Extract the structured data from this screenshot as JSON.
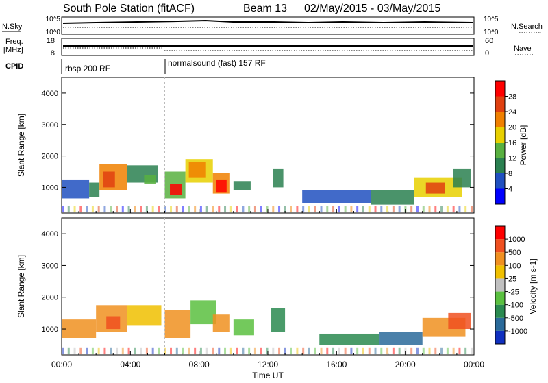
{
  "header": {
    "station": "South Pole Station (fitACF)",
    "beam": "Beam 13",
    "dates": "02/May/2015 - 03/May/2015"
  },
  "top_panels": {
    "nsky_label": "N.Sky",
    "nsky_ticks": [
      "10^5",
      "10^0"
    ],
    "nsearch_label": "N.Search",
    "nsearch_ticks": [
      "10^5",
      "10^0"
    ],
    "freq_label_1": "Freq.",
    "freq_label_2": "[MHz]",
    "freq_ticks": [
      "18",
      "8"
    ],
    "nave_label": "Nave",
    "nave_ticks": [
      "60",
      "0"
    ],
    "cpid_label": "CPID",
    "cpid_entries": [
      {
        "label": "rbsp 200 RF",
        "start_hour": 0
      },
      {
        "label": "normalsound (fast) 157 RF",
        "start_hour": 6
      }
    ]
  },
  "chart_data": [
    {
      "type": "heatmap",
      "title": "",
      "xlabel": "Time UT",
      "ylabel": "Slant Range [km]",
      "x_ticks": [
        "00:00",
        "04:00",
        "08:00",
        "12:00",
        "16:00",
        "20:00",
        "00:00"
      ],
      "xlim_hours": [
        0,
        24
      ],
      "ylim": [
        180,
        4500
      ],
      "y_ticks": [
        1000,
        2000,
        3000,
        4000
      ],
      "colorbar": {
        "label": "Power [dB]",
        "ticks": [
          "4",
          "8",
          "12",
          "16",
          "20",
          "24",
          "28"
        ],
        "colors": [
          "#0000ff",
          "#2050c0",
          "#2a8050",
          "#58b040",
          "#e8d000",
          "#f08000",
          "#e04010",
          "#ff0000"
        ]
      },
      "echo_regions": [
        {
          "t0": 0.0,
          "t1": 1.6,
          "r0": 650,
          "r1": 1250,
          "level": 1
        },
        {
          "t0": 1.6,
          "t1": 2.2,
          "r0": 700,
          "r1": 1150,
          "level": 2
        },
        {
          "t0": 2.2,
          "t1": 3.8,
          "r0": 900,
          "r1": 1750,
          "level": 5
        },
        {
          "t0": 2.4,
          "t1": 3.1,
          "r0": 1000,
          "r1": 1500,
          "level": 6
        },
        {
          "t0": 3.8,
          "t1": 5.6,
          "r0": 1150,
          "r1": 1700,
          "level": 2
        },
        {
          "t0": 4.8,
          "t1": 5.5,
          "r0": 1100,
          "r1": 1400,
          "level": 3
        },
        {
          "t0": 6.0,
          "t1": 7.2,
          "r0": 650,
          "r1": 1500,
          "level": 3
        },
        {
          "t0": 6.3,
          "t1": 7.0,
          "r0": 750,
          "r1": 1100,
          "level": 7
        },
        {
          "t0": 7.2,
          "t1": 8.8,
          "r0": 1150,
          "r1": 1900,
          "level": 4
        },
        {
          "t0": 7.4,
          "t1": 8.4,
          "r0": 1300,
          "r1": 1800,
          "level": 5
        },
        {
          "t0": 8.8,
          "t1": 9.8,
          "r0": 800,
          "r1": 1450,
          "level": 5
        },
        {
          "t0": 9.0,
          "t1": 9.6,
          "r0": 850,
          "r1": 1250,
          "level": 7
        },
        {
          "t0": 10.0,
          "t1": 11.0,
          "r0": 900,
          "r1": 1200,
          "level": 2
        },
        {
          "t0": 12.3,
          "t1": 12.9,
          "r0": 1000,
          "r1": 1600,
          "level": 2
        },
        {
          "t0": 14.0,
          "t1": 18.0,
          "r0": 500,
          "r1": 900,
          "level": 1
        },
        {
          "t0": 18.0,
          "t1": 20.5,
          "r0": 450,
          "r1": 900,
          "level": 2
        },
        {
          "t0": 20.5,
          "t1": 23.3,
          "r0": 700,
          "r1": 1300,
          "level": 4
        },
        {
          "t0": 21.2,
          "t1": 22.3,
          "r0": 800,
          "r1": 1150,
          "level": 6
        },
        {
          "t0": 22.8,
          "t1": 23.8,
          "r0": 1000,
          "r1": 1600,
          "level": 2
        }
      ]
    },
    {
      "type": "heatmap",
      "title": "",
      "xlabel": "Time UT",
      "ylabel": "Slant Range [km]",
      "x_ticks": [
        "00:00",
        "04:00",
        "08:00",
        "12:00",
        "16:00",
        "20:00",
        "00:00"
      ],
      "xlim_hours": [
        0,
        24
      ],
      "ylim": [
        180,
        4500
      ],
      "y_ticks": [
        1000,
        2000,
        3000,
        4000
      ],
      "colorbar": {
        "label": "Velocity [m s-1]",
        "ticks": [
          "1000",
          "500",
          "100",
          "25",
          "-25",
          "-100",
          "-500",
          "-1000"
        ],
        "colors": [
          "#1030c0",
          "#2a6a9a",
          "#2a8a50",
          "#5ac040",
          "#c0c0c0",
          "#f0c000",
          "#f09020",
          "#f05020",
          "#ff0000"
        ]
      },
      "echo_regions": [
        {
          "t0": 0.0,
          "t1": 2.0,
          "r0": 700,
          "r1": 1300,
          "level": 6
        },
        {
          "t0": 2.0,
          "t1": 3.8,
          "r0": 900,
          "r1": 1750,
          "level": 6
        },
        {
          "t0": 2.6,
          "t1": 3.4,
          "r0": 1000,
          "r1": 1400,
          "level": 7
        },
        {
          "t0": 3.8,
          "t1": 5.8,
          "r0": 1100,
          "r1": 1750,
          "level": 5
        },
        {
          "t0": 6.0,
          "t1": 7.5,
          "r0": 700,
          "r1": 1600,
          "level": 6
        },
        {
          "t0": 7.5,
          "t1": 9.0,
          "r0": 1150,
          "r1": 1900,
          "level": 3
        },
        {
          "t0": 8.8,
          "t1": 9.8,
          "r0": 900,
          "r1": 1450,
          "level": 6
        },
        {
          "t0": 10.0,
          "t1": 11.2,
          "r0": 800,
          "r1": 1300,
          "level": 3
        },
        {
          "t0": 12.2,
          "t1": 13.0,
          "r0": 900,
          "r1": 1650,
          "level": 2
        },
        {
          "t0": 15.0,
          "t1": 18.5,
          "r0": 500,
          "r1": 850,
          "level": 2
        },
        {
          "t0": 18.5,
          "t1": 21.0,
          "r0": 500,
          "r1": 900,
          "level": 1
        },
        {
          "t0": 21.0,
          "t1": 23.5,
          "r0": 750,
          "r1": 1350,
          "level": 6
        },
        {
          "t0": 22.5,
          "t1": 23.8,
          "r0": 1000,
          "r1": 1500,
          "level": 7
        }
      ]
    }
  ]
}
